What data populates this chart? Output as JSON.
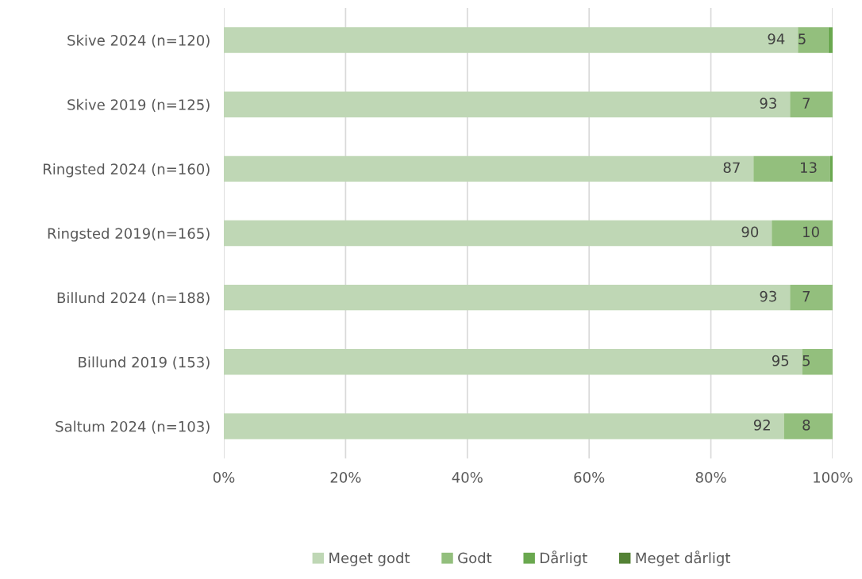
{
  "chart_data": {
    "type": "bar",
    "orientation": "horizontal",
    "stacked": true,
    "categories": [
      "Skive 2024 (n=120)",
      "Skive 2019 (n=125)",
      "Ringsted 2024 (n=160)",
      "Ringsted 2019(n=165)",
      "Billund 2024 (n=188)",
      "Billund 2019 (153)",
      "Saltum 2024 (n=103)"
    ],
    "series": [
      {
        "name": "Meget godt",
        "color": "#bfd7b5",
        "values": [
          94.3,
          93,
          87,
          90,
          93,
          95,
          92
        ],
        "value_labels": [
          "94",
          "93",
          "87",
          "90",
          "93",
          "95",
          "92"
        ]
      },
      {
        "name": "Godt",
        "color": "#93bf7d",
        "values": [
          5.0,
          7,
          12.6,
          10,
          7,
          5,
          8
        ],
        "value_labels": [
          "5",
          "7",
          "13",
          "10",
          "7",
          "5",
          "8"
        ]
      },
      {
        "name": "Dårligt",
        "color": "#6aa84f",
        "values": [
          0.7,
          null,
          0.4,
          null,
          null,
          null,
          null
        ],
        "value_labels": [
          null,
          null,
          null,
          null,
          null,
          null,
          null
        ]
      },
      {
        "name": "Meget dårligt",
        "color": "#548235",
        "values": [
          null,
          null,
          null,
          null,
          null,
          null,
          null
        ],
        "value_labels": [
          null,
          null,
          null,
          null,
          null,
          null,
          null
        ]
      }
    ],
    "xlim": [
      0,
      100
    ],
    "xticks": [
      {
        "value": 0,
        "label": "0%"
      },
      {
        "value": 20,
        "label": "20%"
      },
      {
        "value": 40,
        "label": "40%"
      },
      {
        "value": 60,
        "label": "60%"
      },
      {
        "value": 80,
        "label": "80%"
      },
      {
        "value": 100,
        "label": "100%"
      }
    ],
    "grid": "x",
    "legend": "bottom"
  }
}
